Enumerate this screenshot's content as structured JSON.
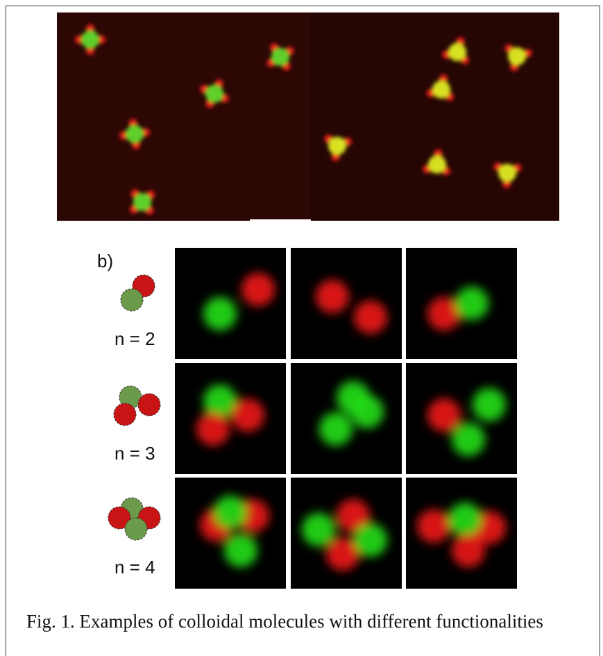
{
  "figure": {
    "panel_label": "b)",
    "rows": [
      {
        "label": "n = 2"
      },
      {
        "label": "n = 3"
      },
      {
        "label": "n = 4"
      }
    ],
    "caption": "Fig. 1. Examples of colloidal molecules with different functionalities"
  }
}
